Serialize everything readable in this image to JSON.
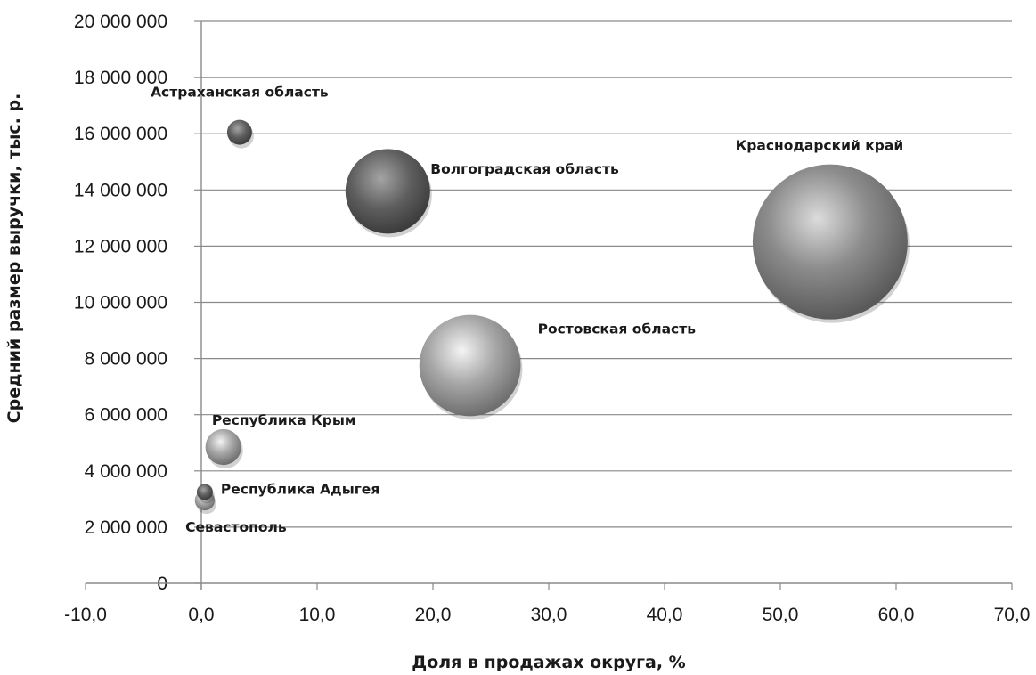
{
  "chart_data": {
    "type": "bubble",
    "xlabel": "Доля в продажах округа, %",
    "ylabel": "Средний размер выручки, тыс. р.",
    "xlim": [
      -10,
      70
    ],
    "ylim": [
      0,
      20000000
    ],
    "x_ticks": [
      -10,
      0,
      10,
      20,
      30,
      40,
      50,
      60,
      70
    ],
    "x_tick_labels": [
      "-10,0",
      "0,0",
      "10,0",
      "20,0",
      "30,0",
      "40,0",
      "50,0",
      "60,0",
      "70,0"
    ],
    "y_ticks": [
      0,
      2000000,
      4000000,
      6000000,
      8000000,
      10000000,
      12000000,
      14000000,
      16000000,
      18000000,
      20000000
    ],
    "y_tick_labels": [
      "0",
      "2 000 000",
      "4 000 000",
      "6 000 000",
      "8 000 000",
      "10 000 000",
      "12 000 000",
      "14 000 000",
      "16 000 000",
      "18 000 000",
      "20 000 000"
    ],
    "grid": "horizontal",
    "points": [
      {
        "label": "Астраханская область",
        "x": 3.3,
        "y": 16050000,
        "size": 1.4,
        "shade": "dark"
      },
      {
        "label": "Волгоградская область",
        "x": 16.1,
        "y": 13950000,
        "size": 16.2,
        "shade": "dark"
      },
      {
        "label": "Краснодарский край",
        "x": 54.3,
        "y": 12150000,
        "size": 54.3,
        "shade": "mid"
      },
      {
        "label": "Ростовская область",
        "x": 23.2,
        "y": 7750000,
        "size": 23.2,
        "shade": "light"
      },
      {
        "label": "Республика Крым",
        "x": 1.9,
        "y": 4850000,
        "size": 2.9,
        "shade": "light"
      },
      {
        "label": "Республика Адыгея",
        "x": 0.3,
        "y": 3250000,
        "size": 0.5,
        "shade": "dark"
      },
      {
        "label": "Севастополь",
        "x": 0.3,
        "y": 2950000,
        "size": 0.9,
        "shade": "light"
      }
    ]
  }
}
